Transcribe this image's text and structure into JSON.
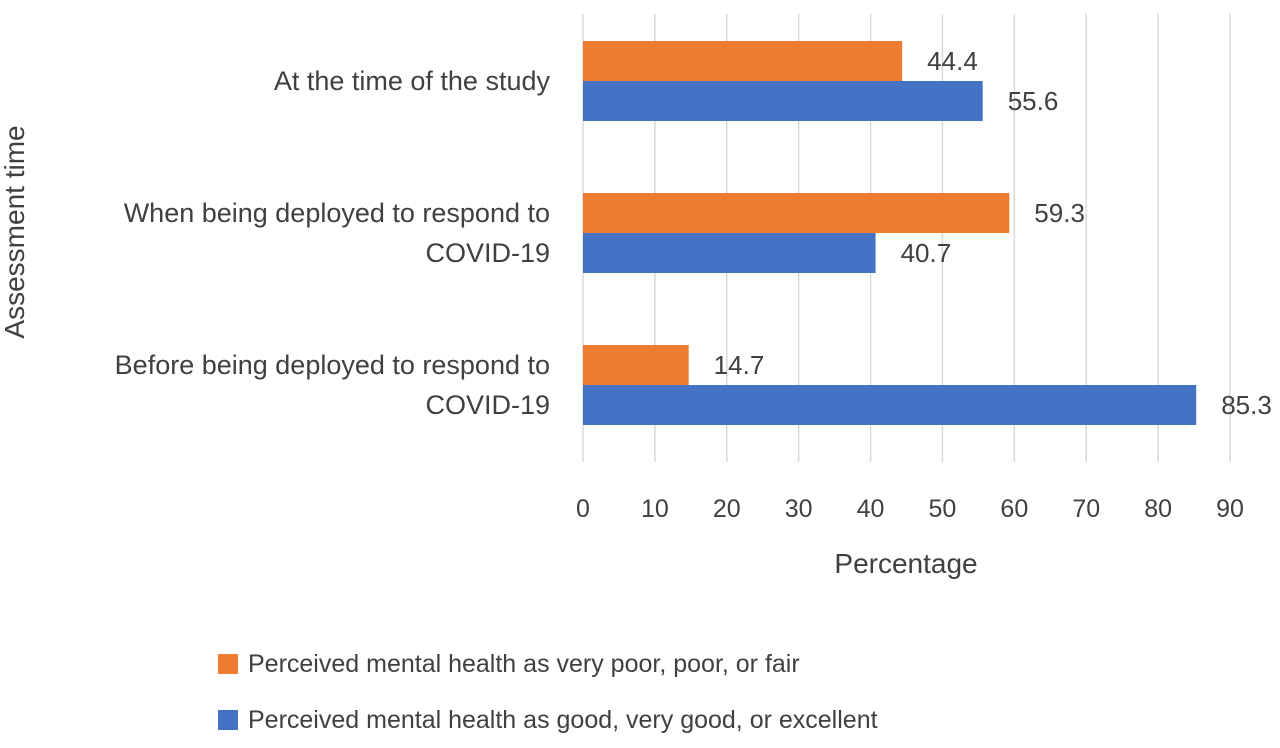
{
  "colors": {
    "series_poor": "#ED7D31",
    "series_good": "#4472C4",
    "gridline": "#D9D9D9",
    "text": "#404040"
  },
  "chart_data": {
    "type": "bar",
    "orientation": "horizontal",
    "categories": [
      [
        "At the time of the study"
      ],
      [
        "When being deployed to respond to",
        "COVID-19"
      ],
      [
        "Before being deployed to respond to",
        "COVID-19"
      ]
    ],
    "series": [
      {
        "name": "Perceived mental health as very poor, poor, or fair",
        "color": "#ED7D31",
        "values": [
          44.4,
          59.3,
          14.7
        ],
        "labels": [
          "44.4",
          "59.3",
          "14.7"
        ]
      },
      {
        "name": "Perceived mental health as good, very good, or excellent",
        "color": "#4472C4",
        "values": [
          55.6,
          40.7,
          85.3
        ],
        "labels": [
          "55.6",
          "40.7",
          "85.3"
        ]
      }
    ],
    "xlabel": "Percentage",
    "ylabel": "Assessment time",
    "xlim": [
      0,
      90
    ],
    "xticks": [
      0,
      10,
      20,
      30,
      40,
      50,
      60,
      70,
      80,
      90
    ],
    "grid": true,
    "legend_position": "bottom"
  }
}
